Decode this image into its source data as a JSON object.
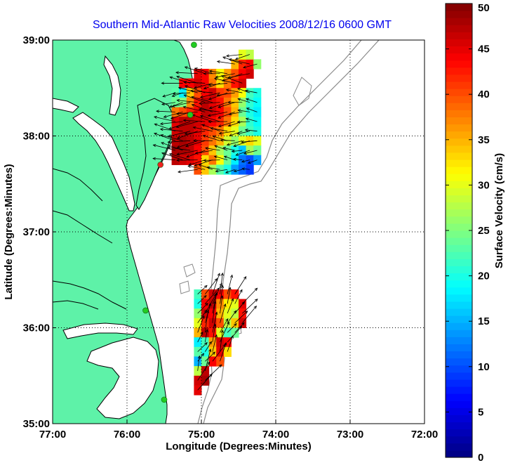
{
  "chart_data": {
    "type": "heatmap",
    "title": "Southern Mid-Atlantic Raw Velocities 2008/12/16 0600 GMT",
    "xlabel": "Longitude (Degrees:Minutes)",
    "ylabel": "Latitude (Degrees:Minutes)",
    "x_ticks": [
      {
        "value": -77,
        "label": "77:00"
      },
      {
        "value": -76,
        "label": "76:00"
      },
      {
        "value": -75,
        "label": "75:00"
      },
      {
        "value": -74,
        "label": "74:00"
      },
      {
        "value": -73,
        "label": "73:00"
      },
      {
        "value": -72,
        "label": "72:00"
      }
    ],
    "y_ticks": [
      {
        "value": 35,
        "label": "35:00"
      },
      {
        "value": 36,
        "label": "36:00"
      },
      {
        "value": 37,
        "label": "37:00"
      },
      {
        "value": 38,
        "label": "38:00"
      },
      {
        "value": 39,
        "label": "39:00"
      }
    ],
    "xlim": [
      -77,
      -72
    ],
    "ylim": [
      35,
      39
    ],
    "grid": "dotted",
    "colorbar": {
      "label": "Surface Velocity (cm/s)",
      "range": [
        0,
        50
      ],
      "ticks": [
        "0",
        "5",
        "10",
        "15",
        "20",
        "25",
        "30",
        "35",
        "40",
        "45",
        "50"
      ]
    },
    "colors": {
      "land": "#5ef2a8",
      "coastline": "#000000",
      "isobath": "#8a8a8a",
      "title": "#0000ee",
      "station": "#22cc22",
      "station_alt": "#ee2222"
    },
    "velocity_patches": [
      {
        "region": "north",
        "cells": [
          [
            -75.25,
            38.55,
            44
          ],
          [
            -75.15,
            38.55,
            44
          ],
          [
            -75.05,
            38.55,
            46
          ],
          [
            -74.95,
            38.55,
            44
          ],
          [
            -74.85,
            38.55,
            38
          ],
          [
            -74.75,
            38.55,
            33
          ],
          [
            -74.65,
            38.55,
            38
          ],
          [
            -74.55,
            38.55,
            43
          ],
          [
            -74.45,
            38.55,
            46
          ],
          [
            -74.65,
            38.65,
            36
          ],
          [
            -74.55,
            38.65,
            40
          ],
          [
            -74.45,
            38.65,
            44
          ],
          [
            -74.35,
            38.65,
            46
          ],
          [
            -74.55,
            38.75,
            35
          ],
          [
            -74.45,
            38.75,
            42
          ],
          [
            -74.35,
            38.75,
            44
          ],
          [
            -74.45,
            38.85,
            30
          ],
          [
            -74.35,
            38.85,
            28
          ],
          [
            -74.25,
            38.75,
            26
          ],
          [
            -75.05,
            38.65,
            45
          ],
          [
            -74.95,
            38.65,
            44
          ],
          [
            -74.85,
            38.65,
            37
          ],
          [
            -74.75,
            38.65,
            31
          ],
          [
            -75.35,
            38.45,
            23
          ],
          [
            -75.25,
            38.45,
            18
          ],
          [
            -75.15,
            38.45,
            34
          ],
          [
            -75.05,
            38.45,
            40
          ],
          [
            -74.95,
            38.45,
            44
          ],
          [
            -74.85,
            38.45,
            46
          ],
          [
            -74.75,
            38.45,
            41
          ],
          [
            -74.65,
            38.45,
            40
          ],
          [
            -74.55,
            38.45,
            36
          ],
          [
            -74.45,
            38.45,
            31
          ],
          [
            -74.35,
            38.45,
            22
          ],
          [
            -74.25,
            38.45,
            20
          ],
          [
            -75.35,
            38.35,
            24
          ],
          [
            -75.25,
            38.35,
            25
          ],
          [
            -75.15,
            38.35,
            37
          ],
          [
            -75.05,
            38.35,
            43
          ],
          [
            -74.95,
            38.35,
            47
          ],
          [
            -74.85,
            38.35,
            45
          ],
          [
            -74.75,
            38.35,
            43
          ],
          [
            -74.65,
            38.35,
            38
          ],
          [
            -74.55,
            38.35,
            34
          ],
          [
            -74.45,
            38.35,
            26
          ],
          [
            -74.35,
            38.35,
            21
          ],
          [
            -74.25,
            38.35,
            19
          ],
          [
            -75.35,
            38.25,
            38
          ],
          [
            -75.25,
            38.25,
            40
          ],
          [
            -75.15,
            38.25,
            42
          ],
          [
            -75.05,
            38.25,
            44
          ],
          [
            -74.95,
            38.25,
            47
          ],
          [
            -74.85,
            38.25,
            46
          ],
          [
            -74.75,
            38.25,
            44
          ],
          [
            -74.65,
            38.25,
            40
          ],
          [
            -74.55,
            38.25,
            35
          ],
          [
            -74.45,
            38.25,
            24
          ],
          [
            -74.35,
            38.25,
            20
          ],
          [
            -74.25,
            38.25,
            18
          ],
          [
            -75.35,
            38.15,
            45
          ],
          [
            -75.25,
            38.15,
            47
          ],
          [
            -75.15,
            38.15,
            47
          ],
          [
            -75.05,
            38.15,
            46
          ],
          [
            -74.95,
            38.15,
            45
          ],
          [
            -74.85,
            38.15,
            44
          ],
          [
            -74.75,
            38.15,
            42
          ],
          [
            -74.65,
            38.15,
            38
          ],
          [
            -74.55,
            38.15,
            33
          ],
          [
            -74.45,
            38.15,
            27
          ],
          [
            -74.35,
            38.15,
            21
          ],
          [
            -74.25,
            38.15,
            19
          ],
          [
            -75.35,
            38.05,
            46
          ],
          [
            -75.25,
            38.05,
            47
          ],
          [
            -75.15,
            38.05,
            47
          ],
          [
            -75.05,
            38.05,
            45
          ],
          [
            -74.95,
            38.05,
            42
          ],
          [
            -74.85,
            38.05,
            40
          ],
          [
            -74.75,
            38.05,
            38
          ],
          [
            -74.65,
            38.05,
            33
          ],
          [
            -74.55,
            38.05,
            30
          ],
          [
            -74.45,
            38.05,
            24
          ],
          [
            -74.35,
            38.05,
            22
          ],
          [
            -74.25,
            38.05,
            20
          ],
          [
            -75.35,
            37.95,
            47
          ],
          [
            -75.25,
            37.95,
            48
          ],
          [
            -75.15,
            37.95,
            47
          ],
          [
            -75.05,
            37.95,
            45
          ],
          [
            -74.95,
            37.95,
            41
          ],
          [
            -74.85,
            37.95,
            38
          ],
          [
            -74.75,
            37.95,
            35
          ],
          [
            -74.65,
            37.95,
            29
          ],
          [
            -74.55,
            37.95,
            26
          ],
          [
            -74.45,
            37.95,
            30
          ],
          [
            -74.35,
            37.95,
            33
          ],
          [
            -74.25,
            37.95,
            30
          ],
          [
            -75.35,
            37.85,
            48
          ],
          [
            -75.25,
            37.85,
            48
          ],
          [
            -75.15,
            37.85,
            47
          ],
          [
            -75.05,
            37.85,
            44
          ],
          [
            -74.95,
            37.85,
            40
          ],
          [
            -74.85,
            37.85,
            34
          ],
          [
            -74.75,
            37.85,
            27
          ],
          [
            -74.65,
            37.85,
            24
          ],
          [
            -74.55,
            37.85,
            20
          ],
          [
            -74.45,
            37.85,
            16
          ],
          [
            -74.35,
            37.85,
            27
          ],
          [
            -74.25,
            37.85,
            24
          ],
          [
            -75.35,
            37.75,
            47
          ],
          [
            -75.25,
            37.75,
            46
          ],
          [
            -75.15,
            37.75,
            45
          ],
          [
            -75.05,
            37.75,
            43
          ],
          [
            -74.95,
            37.75,
            33
          ],
          [
            -74.85,
            37.75,
            38
          ],
          [
            -74.75,
            37.75,
            31
          ],
          [
            -74.65,
            37.75,
            24
          ],
          [
            -74.55,
            37.75,
            18
          ],
          [
            -74.45,
            37.75,
            12
          ],
          [
            -74.35,
            37.75,
            10
          ],
          [
            -74.25,
            37.75,
            14
          ],
          [
            -75.05,
            37.65,
            40
          ],
          [
            -74.95,
            37.65,
            34
          ],
          [
            -74.85,
            37.65,
            27
          ],
          [
            -74.75,
            37.65,
            23
          ],
          [
            -74.65,
            37.65,
            20
          ],
          [
            -74.55,
            37.65,
            14
          ],
          [
            -74.45,
            37.65,
            11
          ],
          [
            -74.35,
            37.65,
            9
          ]
        ]
      },
      {
        "region": "south",
        "cells": [
          [
            -75.05,
            36.35,
            22
          ],
          [
            -74.95,
            36.35,
            40
          ],
          [
            -74.85,
            36.35,
            46
          ],
          [
            -74.75,
            36.35,
            44
          ],
          [
            -74.65,
            36.35,
            40
          ],
          [
            -74.55,
            36.35,
            43
          ],
          [
            -75.05,
            36.25,
            20
          ],
          [
            -74.95,
            36.25,
            44
          ],
          [
            -74.85,
            36.25,
            47
          ],
          [
            -74.75,
            36.25,
            37
          ],
          [
            -74.65,
            36.25,
            32
          ],
          [
            -74.55,
            36.25,
            30
          ],
          [
            -74.45,
            36.25,
            45
          ],
          [
            -75.05,
            36.15,
            26
          ],
          [
            -74.95,
            36.15,
            46
          ],
          [
            -74.85,
            36.15,
            44
          ],
          [
            -74.75,
            36.15,
            35
          ],
          [
            -74.65,
            36.15,
            30
          ],
          [
            -74.55,
            36.15,
            28
          ],
          [
            -74.45,
            36.15,
            43
          ],
          [
            -75.05,
            36.05,
            30
          ],
          [
            -74.95,
            36.05,
            42
          ],
          [
            -74.85,
            36.05,
            46
          ],
          [
            -74.75,
            36.05,
            40
          ],
          [
            -74.65,
            36.05,
            28
          ],
          [
            -74.55,
            36.05,
            34
          ],
          [
            -74.45,
            36.05,
            46
          ],
          [
            -75.05,
            35.95,
            35
          ],
          [
            -74.95,
            35.95,
            47
          ],
          [
            -74.85,
            35.95,
            43
          ],
          [
            -74.75,
            35.95,
            30
          ],
          [
            -74.65,
            35.95,
            22
          ],
          [
            -74.55,
            35.95,
            24
          ],
          [
            -75.05,
            35.85,
            18
          ],
          [
            -74.95,
            35.85,
            22
          ],
          [
            -74.85,
            35.85,
            36
          ],
          [
            -74.75,
            35.85,
            46
          ],
          [
            -74.65,
            35.85,
            44
          ],
          [
            -75.05,
            35.75,
            23
          ],
          [
            -74.95,
            35.75,
            20
          ],
          [
            -74.85,
            35.75,
            34
          ],
          [
            -74.75,
            35.75,
            45
          ],
          [
            -74.65,
            35.75,
            33
          ],
          [
            -75.05,
            35.65,
            15
          ],
          [
            -74.95,
            35.65,
            24
          ],
          [
            -74.85,
            35.65,
            44
          ],
          [
            -74.75,
            35.65,
            40
          ],
          [
            -75.05,
            35.55,
            28
          ],
          [
            -74.95,
            35.55,
            47
          ],
          [
            -75.05,
            35.45,
            46
          ],
          [
            -74.95,
            35.45,
            48
          ],
          [
            -75.05,
            35.35,
            45
          ]
        ]
      }
    ],
    "stations": [
      {
        "lon": -75.1,
        "lat": 38.95,
        "type": "station"
      },
      {
        "lon": -75.15,
        "lat": 38.22,
        "type": "station"
      },
      {
        "lon": -75.55,
        "lat": 37.7,
        "type": "station_alt"
      },
      {
        "lon": -75.75,
        "lat": 36.18,
        "type": "station"
      },
      {
        "lon": -75.5,
        "lat": 35.25,
        "type": "station"
      }
    ]
  }
}
